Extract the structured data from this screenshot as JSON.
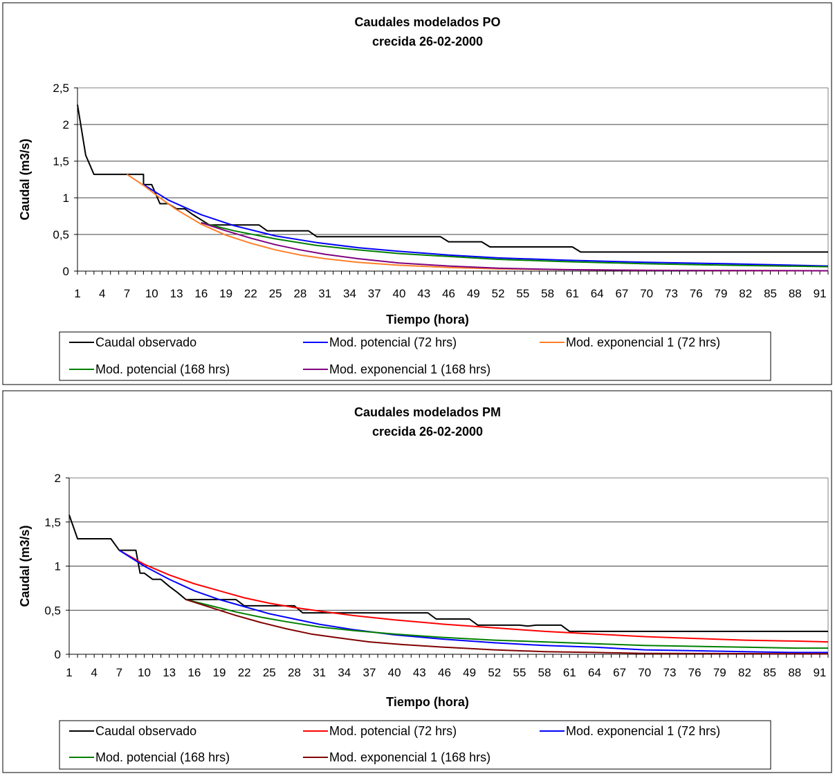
{
  "chart_data": [
    {
      "type": "line",
      "title": [
        "Caudales modelados PO",
        "crecida 26-02-2000"
      ],
      "xlabel": "Tiempo (hora)",
      "ylabel": "Caudal (m3/s)",
      "xlim": [
        1,
        92
      ],
      "ylim": [
        0,
        2.5
      ],
      "y_ticks": [
        "0",
        "0,5",
        "1",
        "1,5",
        "2",
        "2,5"
      ],
      "y_tick_values": [
        0,
        0.5,
        1,
        1.5,
        2,
        2.5
      ],
      "x_tick_labels": [
        "1",
        "4",
        "7",
        "10",
        "13",
        "16",
        "19",
        "22",
        "25",
        "28",
        "31",
        "34",
        "37",
        "40",
        "43",
        "46",
        "49",
        "52",
        "55",
        "58",
        "61",
        "64",
        "67",
        "70",
        "73",
        "76",
        "79",
        "82",
        "85",
        "88",
        "91"
      ],
      "grid": true,
      "legend": "bottom",
      "series": [
        {
          "name": "Caudal observado",
          "color": "#000000",
          "points": [
            [
              1,
              2.27
            ],
            [
              2,
              1.58
            ],
            [
              3,
              1.32
            ],
            [
              9,
              1.32
            ],
            [
              9.01,
              1.18
            ],
            [
              10,
              1.18
            ],
            [
              11,
              0.92
            ],
            [
              12,
              0.92
            ],
            [
              13,
              0.85
            ],
            [
              14,
              0.85
            ],
            [
              15,
              0.77
            ],
            [
              16,
              0.7
            ],
            [
              17,
              0.63
            ],
            [
              23,
              0.63
            ],
            [
              24,
              0.55
            ],
            [
              29,
              0.55
            ],
            [
              30,
              0.47
            ],
            [
              45,
              0.47
            ],
            [
              46,
              0.4
            ],
            [
              50,
              0.4
            ],
            [
              51,
              0.33
            ],
            [
              61,
              0.33
            ],
            [
              62,
              0.26
            ],
            [
              92,
              0.26
            ]
          ]
        },
        {
          "name": "Mod. potencial (72 hrs)",
          "color": "#0000ff",
          "points": [
            [
              9,
              1.18
            ],
            [
              12,
              0.97
            ],
            [
              16,
              0.77
            ],
            [
              20,
              0.62
            ],
            [
              25,
              0.48
            ],
            [
              30,
              0.39
            ],
            [
              35,
              0.32
            ],
            [
              40,
              0.27
            ],
            [
              46,
              0.22
            ],
            [
              52,
              0.18
            ],
            [
              60,
              0.15
            ],
            [
              70,
              0.12
            ],
            [
              80,
              0.1
            ],
            [
              92,
              0.07
            ]
          ]
        },
        {
          "name": "Mod. exponencial 1 (72 hrs)",
          "color": "#ff7f27",
          "points": [
            [
              7,
              1.32
            ],
            [
              9,
              1.17
            ],
            [
              11,
              1.0
            ],
            [
              13,
              0.84
            ],
            [
              16,
              0.64
            ],
            [
              19,
              0.49
            ],
            [
              22,
              0.38
            ],
            [
              25,
              0.29
            ],
            [
              28,
              0.22
            ],
            [
              31,
              0.17
            ],
            [
              35,
              0.12
            ],
            [
              40,
              0.08
            ],
            [
              46,
              0.05
            ],
            [
              52,
              0.03
            ],
            [
              60,
              0.02
            ],
            [
              70,
              0.01
            ],
            [
              92,
              0.005
            ]
          ]
        },
        {
          "name": "Mod. potencial (168 hrs)",
          "color": "#008000",
          "points": [
            [
              16,
              0.66
            ],
            [
              20,
              0.55
            ],
            [
              25,
              0.44
            ],
            [
              30,
              0.35
            ],
            [
              35,
              0.29
            ],
            [
              40,
              0.24
            ],
            [
              46,
              0.2
            ],
            [
              52,
              0.16
            ],
            [
              60,
              0.13
            ],
            [
              70,
              0.1
            ],
            [
              80,
              0.08
            ],
            [
              92,
              0.06
            ]
          ]
        },
        {
          "name": "Mod. exponencial 1 (168 hrs)",
          "color": "#800080",
          "points": [
            [
              16,
              0.66
            ],
            [
              19,
              0.55
            ],
            [
              22,
              0.45
            ],
            [
              25,
              0.36
            ],
            [
              28,
              0.29
            ],
            [
              31,
              0.23
            ],
            [
              35,
              0.17
            ],
            [
              40,
              0.11
            ],
            [
              46,
              0.07
            ],
            [
              52,
              0.04
            ],
            [
              60,
              0.02
            ],
            [
              70,
              0.01
            ],
            [
              92,
              0.005
            ]
          ]
        }
      ]
    },
    {
      "type": "line",
      "title": [
        "Caudales modelados PM",
        "crecida 26-02-2000"
      ],
      "xlabel": "Tiempo (hora)",
      "ylabel": "Caudal (m3/s)",
      "xlim": [
        1,
        92
      ],
      "ylim": [
        0,
        2
      ],
      "y_ticks": [
        "0",
        "0,5",
        "1",
        "1,5",
        "2"
      ],
      "y_tick_values": [
        0,
        0.5,
        1,
        1.5,
        2
      ],
      "x_tick_labels": [
        "1",
        "4",
        "7",
        "10",
        "13",
        "16",
        "19",
        "22",
        "25",
        "28",
        "31",
        "34",
        "37",
        "40",
        "43",
        "46",
        "49",
        "52",
        "55",
        "58",
        "61",
        "64",
        "67",
        "70",
        "73",
        "76",
        "79",
        "82",
        "85",
        "88",
        "91"
      ],
      "grid": true,
      "legend": "bottom",
      "series": [
        {
          "name": "Caudal observado",
          "color": "#000000",
          "points": [
            [
              1,
              1.58
            ],
            [
              2,
              1.31
            ],
            [
              6,
              1.31
            ],
            [
              7,
              1.18
            ],
            [
              9,
              1.18
            ],
            [
              9.5,
              0.92
            ],
            [
              10,
              0.92
            ],
            [
              11,
              0.85
            ],
            [
              12,
              0.85
            ],
            [
              13,
              0.77
            ],
            [
              14,
              0.7
            ],
            [
              15,
              0.62
            ],
            [
              21,
              0.62
            ],
            [
              22,
              0.55
            ],
            [
              28,
              0.55
            ],
            [
              29,
              0.47
            ],
            [
              44,
              0.47
            ],
            [
              45,
              0.4
            ],
            [
              49,
              0.4
            ],
            [
              50,
              0.33
            ],
            [
              55,
              0.33
            ],
            [
              56,
              0.32
            ],
            [
              57,
              0.33
            ],
            [
              60,
              0.33
            ],
            [
              61,
              0.26
            ],
            [
              92,
              0.26
            ]
          ]
        },
        {
          "name": "Mod. potencial (72 hrs)",
          "color": "#ff0000",
          "points": [
            [
              7,
              1.18
            ],
            [
              10,
              1.02
            ],
            [
              13,
              0.9
            ],
            [
              16,
              0.8
            ],
            [
              19,
              0.72
            ],
            [
              22,
              0.64
            ],
            [
              25,
              0.58
            ],
            [
              28,
              0.53
            ],
            [
              31,
              0.49
            ],
            [
              35,
              0.44
            ],
            [
              40,
              0.39
            ],
            [
              46,
              0.34
            ],
            [
              52,
              0.3
            ],
            [
              58,
              0.26
            ],
            [
              64,
              0.23
            ],
            [
              70,
              0.2
            ],
            [
              76,
              0.18
            ],
            [
              82,
              0.16
            ],
            [
              88,
              0.15
            ],
            [
              92,
              0.14
            ]
          ]
        },
        {
          "name": "Mod. exponencial 1 (72 hrs)",
          "color": "#0000ff",
          "points": [
            [
              7,
              1.18
            ],
            [
              10,
              1.0
            ],
            [
              13,
              0.85
            ],
            [
              16,
              0.72
            ],
            [
              19,
              0.62
            ],
            [
              22,
              0.54
            ],
            [
              25,
              0.46
            ],
            [
              28,
              0.4
            ],
            [
              31,
              0.34
            ],
            [
              35,
              0.28
            ],
            [
              40,
              0.22
            ],
            [
              46,
              0.17
            ],
            [
              52,
              0.13
            ],
            [
              58,
              0.1
            ],
            [
              64,
              0.08
            ],
            [
              70,
              0.05
            ],
            [
              76,
              0.04
            ],
            [
              82,
              0.03
            ],
            [
              88,
              0.02
            ],
            [
              92,
              0.02
            ]
          ]
        },
        {
          "name": "Mod. potencial (168 hrs)",
          "color": "#008000",
          "points": [
            [
              15,
              0.62
            ],
            [
              18,
              0.55
            ],
            [
              21,
              0.48
            ],
            [
              24,
              0.42
            ],
            [
              27,
              0.37
            ],
            [
              31,
              0.31
            ],
            [
              35,
              0.27
            ],
            [
              40,
              0.23
            ],
            [
              46,
              0.19
            ],
            [
              52,
              0.16
            ],
            [
              58,
              0.14
            ],
            [
              64,
              0.12
            ],
            [
              70,
              0.1
            ],
            [
              76,
              0.09
            ],
            [
              82,
              0.08
            ],
            [
              88,
              0.07
            ],
            [
              92,
              0.07
            ]
          ]
        },
        {
          "name": "Mod. exponencial 1 (168 hrs)",
          "color": "#800000",
          "points": [
            [
              15,
              0.62
            ],
            [
              18,
              0.53
            ],
            [
              21,
              0.44
            ],
            [
              24,
              0.36
            ],
            [
              27,
              0.29
            ],
            [
              30,
              0.23
            ],
            [
              33,
              0.19
            ],
            [
              37,
              0.14
            ],
            [
              41,
              0.11
            ],
            [
              46,
              0.08
            ],
            [
              52,
              0.05
            ],
            [
              58,
              0.03
            ],
            [
              64,
              0.02
            ],
            [
              70,
              0.01
            ],
            [
              92,
              0.005
            ]
          ]
        }
      ]
    }
  ]
}
